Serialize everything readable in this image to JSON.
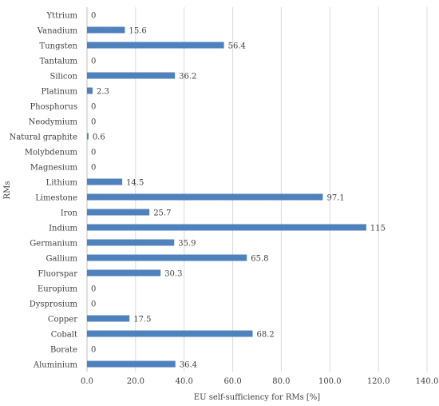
{
  "chart_data": {
    "type": "bar",
    "orientation": "horizontal",
    "title": "",
    "xlabel": "EU self-sufficiency for RMs [%]",
    "ylabel": "RMs",
    "xlim": [
      0,
      140
    ],
    "xticks": [
      "0.0",
      "20.0",
      "40.0",
      "60.0",
      "80.0",
      "100.0",
      "120.0",
      "140.0"
    ],
    "grid": true,
    "legend": "none",
    "bar_color": "#4f81bd",
    "categories": [
      "Yttrium",
      "Vanadium",
      "Tungsten",
      "Tantalum",
      "Silicon",
      "Platinum",
      "Phosphorus",
      "Neodymium",
      "Natural graphite",
      "Molybdenum",
      "Magnesium",
      "Lithium",
      "Limestone",
      "Iron",
      "Indium",
      "Germanium",
      "Gallium",
      "Fluorspar",
      "Europium",
      "Dysprosium",
      "Copper",
      "Cobalt",
      "Borate",
      "Aluminium"
    ],
    "values": [
      0,
      15.6,
      56.4,
      0,
      36.2,
      2.3,
      0,
      0,
      0.6,
      0,
      0,
      14.5,
      97.1,
      25.7,
      115,
      35.9,
      65.8,
      30.3,
      0,
      0,
      17.5,
      68.2,
      0,
      36.4
    ],
    "data_labels": [
      "0",
      "15.6",
      "56.4",
      "0",
      "36.2",
      "2.3",
      "0",
      "0",
      "0.6",
      "0",
      "0",
      "14.5",
      "97.1",
      "25.7",
      "115",
      "35.9",
      "65.8",
      "30.3",
      "0",
      "0",
      "17.5",
      "68.2",
      "0",
      "36.4"
    ]
  }
}
